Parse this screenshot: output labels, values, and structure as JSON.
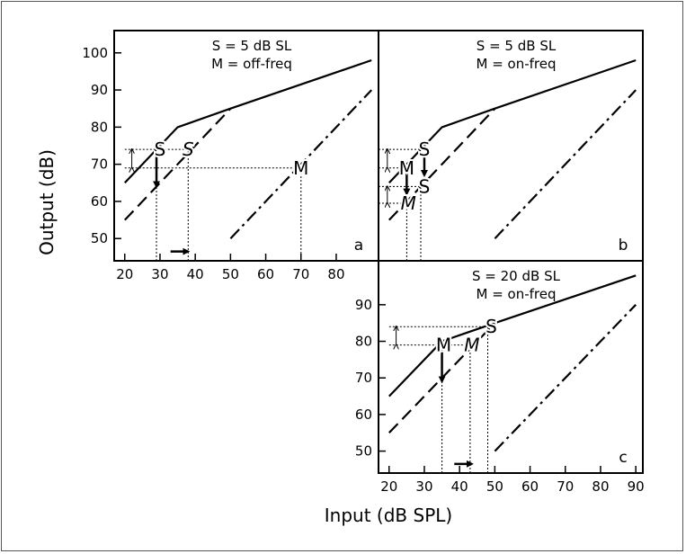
{
  "figure": {
    "xlabel": "Input (dB SPL)",
    "ylabel": "Output (dB)"
  },
  "chart_data": [
    {
      "id": "a",
      "type": "line",
      "panel_label": "a",
      "annotation": [
        "S = 5 dB SL",
        "M = off-freq"
      ],
      "xlim": [
        17,
        92
      ],
      "ylim": [
        44,
        106
      ],
      "xticks": [
        20,
        30,
        40,
        50,
        60,
        70,
        80
      ],
      "yticks": [
        50,
        60,
        70,
        80,
        90,
        100
      ],
      "series": [
        {
          "style": "solid",
          "points": [
            [
              20,
              65
            ],
            [
              35,
              80
            ],
            [
              50,
              85
            ],
            [
              90,
              98
            ]
          ]
        },
        {
          "style": "dashed",
          "points": [
            [
              20,
              55
            ],
            [
              50,
              85
            ]
          ]
        },
        {
          "style": "dashdot",
          "points": [
            [
              50,
              50
            ],
            [
              90,
              90
            ]
          ]
        }
      ],
      "markers": [
        {
          "text": "S",
          "x": 30,
          "y": 74,
          "style": "normal"
        },
        {
          "text": "S",
          "x": 38,
          "y": 74,
          "style": "italic"
        },
        {
          "text": "M",
          "x": 70,
          "y": 69,
          "style": "normal"
        }
      ],
      "guides": [
        {
          "points": [
            [
              20,
              74
            ],
            [
              38,
              74
            ]
          ]
        },
        {
          "points": [
            [
              20,
              69
            ],
            [
              70,
              69
            ]
          ]
        },
        {
          "points": [
            [
              29,
              44
            ],
            [
              29,
              69
            ]
          ]
        },
        {
          "points": [
            [
              38,
              44
            ],
            [
              38,
              74
            ]
          ]
        },
        {
          "points": [
            [
              70,
              44
            ],
            [
              70,
              69
            ]
          ]
        }
      ],
      "arrows": [
        {
          "from": [
            29,
            72
          ],
          "to": [
            29,
            64
          ]
        },
        {
          "from": [
            33,
            46.5
          ],
          "to": [
            38,
            46.5
          ]
        }
      ],
      "double_arrows": [
        {
          "x": 22,
          "y1": 69,
          "y2": 74
        }
      ]
    },
    {
      "id": "b",
      "type": "line",
      "panel_label": "b",
      "annotation": [
        "S = 5 dB SL",
        "M = on-freq"
      ],
      "xlim": [
        17,
        92
      ],
      "ylim": [
        44,
        106
      ],
      "xticks": [],
      "yticks": [],
      "series": [
        {
          "style": "solid",
          "points": [
            [
              20,
              65
            ],
            [
              35,
              80
            ],
            [
              50,
              85
            ],
            [
              90,
              98
            ]
          ]
        },
        {
          "style": "dashed",
          "points": [
            [
              20,
              55
            ],
            [
              50,
              85
            ]
          ]
        },
        {
          "style": "dashdot",
          "points": [
            [
              50,
              50
            ],
            [
              90,
              90
            ]
          ]
        }
      ],
      "markers": [
        {
          "text": "S",
          "x": 30,
          "y": 74,
          "style": "normal"
        },
        {
          "text": "M",
          "x": 25,
          "y": 69,
          "style": "normal"
        },
        {
          "text": "S",
          "x": 30,
          "y": 64,
          "style": "normal"
        },
        {
          "text": "M",
          "x": 25.5,
          "y": 59.5,
          "style": "italic"
        }
      ],
      "guides": [
        {
          "points": [
            [
              17,
              74
            ],
            [
              30,
              74
            ]
          ]
        },
        {
          "points": [
            [
              17,
              69
            ],
            [
              25,
              69
            ]
          ]
        },
        {
          "points": [
            [
              17,
              64
            ],
            [
              30,
              64
            ]
          ]
        },
        {
          "points": [
            [
              17,
              59.5
            ],
            [
              25,
              59.5
            ]
          ]
        },
        {
          "points": [
            [
              25,
              44
            ],
            [
              25,
              59.5
            ]
          ]
        },
        {
          "points": [
            [
              29,
              44
            ],
            [
              29,
              64
            ]
          ]
        }
      ],
      "arrows": [
        {
          "from": [
            30,
            72.5
          ],
          "to": [
            30,
            67
          ]
        },
        {
          "from": [
            25,
            67.5
          ],
          "to": [
            25,
            62
          ]
        }
      ],
      "double_arrows": [
        {
          "x": 19.5,
          "y1": 69,
          "y2": 74
        },
        {
          "x": 19.5,
          "y1": 59.5,
          "y2": 64
        }
      ]
    },
    {
      "id": "c",
      "type": "line",
      "panel_label": "c",
      "annotation": [
        "S = 20 dB SL",
        "M = on-freq"
      ],
      "xlim": [
        17,
        92
      ],
      "ylim": [
        44,
        102
      ],
      "xticks": [
        20,
        30,
        40,
        50,
        60,
        70,
        80,
        90
      ],
      "yticks": [
        50,
        60,
        70,
        80,
        90
      ],
      "series": [
        {
          "style": "solid",
          "points": [
            [
              20,
              65
            ],
            [
              35,
              80
            ],
            [
              50,
              85
            ],
            [
              90,
              98
            ]
          ]
        },
        {
          "style": "dashed",
          "points": [
            [
              20,
              55
            ],
            [
              50,
              85
            ]
          ]
        },
        {
          "style": "dashdot",
          "points": [
            [
              50,
              50
            ],
            [
              90,
              90
            ]
          ]
        }
      ],
      "markers": [
        {
          "text": "S",
          "x": 49,
          "y": 84,
          "style": "normal"
        },
        {
          "text": "M",
          "x": 35.5,
          "y": 79,
          "style": "normal"
        },
        {
          "text": "M",
          "x": 43.5,
          "y": 79,
          "style": "italic"
        }
      ],
      "guides": [
        {
          "points": [
            [
              20,
              84
            ],
            [
              49,
              84
            ]
          ]
        },
        {
          "points": [
            [
              20,
              79
            ],
            [
              44,
              79
            ]
          ]
        },
        {
          "points": [
            [
              35,
              44
            ],
            [
              35,
              79
            ]
          ]
        },
        {
          "points": [
            [
              43,
              44
            ],
            [
              43,
              79
            ]
          ]
        },
        {
          "points": [
            [
              48,
              44
            ],
            [
              48,
              84
            ]
          ]
        }
      ],
      "arrows": [
        {
          "from": [
            35,
            77
          ],
          "to": [
            35,
            69
          ]
        },
        {
          "from": [
            38.5,
            46.5
          ],
          "to": [
            43.5,
            46.5
          ]
        }
      ],
      "double_arrows": [
        {
          "x": 22,
          "y1": 79,
          "y2": 84
        }
      ]
    }
  ]
}
